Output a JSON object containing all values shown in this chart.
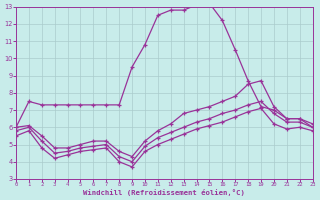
{
  "bg_color": "#c8ecea",
  "grid_color": "#aacccc",
  "line_color": "#993399",
  "xlabel": "Windchill (Refroidissement éolien,°C)",
  "xlim": [
    0,
    23
  ],
  "ylim": [
    3,
    13
  ],
  "xticks": [
    0,
    1,
    2,
    3,
    4,
    5,
    6,
    7,
    8,
    9,
    10,
    11,
    12,
    13,
    14,
    15,
    16,
    17,
    18,
    19,
    20,
    21,
    22,
    23
  ],
  "yticks": [
    3,
    4,
    5,
    6,
    7,
    8,
    9,
    10,
    11,
    12,
    13
  ],
  "series1": [
    6.0,
    7.5,
    7.3,
    7.3,
    7.3,
    7.3,
    7.3,
    7.3,
    7.3,
    9.5,
    10.8,
    12.5,
    12.8,
    12.8,
    13.1,
    13.2,
    12.2,
    10.5,
    8.7,
    7.2,
    7.0,
    6.5,
    6.5,
    6.0
  ],
  "series2": [
    6.0,
    6.1,
    5.5,
    4.8,
    4.8,
    5.0,
    5.2,
    5.2,
    4.6,
    4.3,
    5.2,
    5.8,
    6.2,
    6.8,
    7.0,
    7.2,
    7.5,
    7.8,
    8.5,
    8.7,
    7.2,
    6.5,
    6.5,
    6.2
  ],
  "series3": [
    5.8,
    6.0,
    5.2,
    4.5,
    4.6,
    4.8,
    4.9,
    5.0,
    4.3,
    4.0,
    4.9,
    5.4,
    5.7,
    6.0,
    6.3,
    6.5,
    6.8,
    7.0,
    7.3,
    7.5,
    6.8,
    6.3,
    6.3,
    6.0
  ],
  "series4": [
    5.5,
    5.8,
    4.8,
    4.2,
    4.4,
    4.6,
    4.7,
    4.8,
    4.0,
    3.7,
    4.6,
    5.0,
    5.3,
    5.6,
    5.9,
    6.1,
    6.3,
    6.6,
    6.9,
    7.1,
    6.2,
    5.9,
    6.0,
    5.8
  ]
}
